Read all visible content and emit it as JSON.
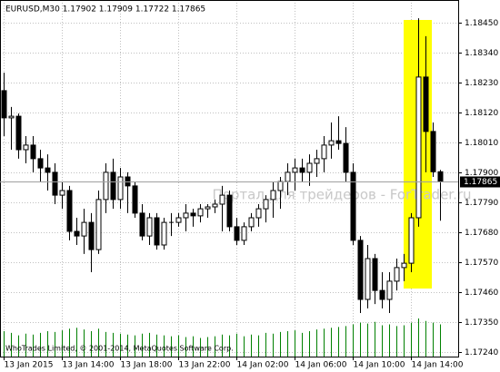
{
  "chart_data": {
    "type": "candlestick",
    "title": "EURUSD,M30  1.17902 1.17909 1.17722 1.17865",
    "watermark": "Портал для трейдеров - ForTrader.ru",
    "copyright": "WhoTrades Limited, © 2001-2014, MetaQuotes Software Corp.",
    "categories": [
      "13 Jan 2015",
      null,
      null,
      null,
      null,
      null,
      null,
      null,
      "13 Jan 14:00",
      null,
      null,
      null,
      null,
      null,
      null,
      null,
      "13 Jan 18:00",
      null,
      null,
      null,
      null,
      null,
      null,
      null,
      "13 Jan 22:00",
      null,
      null,
      null,
      null,
      null,
      null,
      null,
      "14 Jan 02:00",
      null,
      null,
      null,
      null,
      null,
      null,
      null,
      "14 Jan 06:00",
      null,
      null,
      null,
      null,
      null,
      null,
      null,
      "14 Jan 10:00",
      null,
      null,
      null,
      null,
      null,
      null,
      null,
      "14 Jan 14:00",
      null,
      null,
      null,
      null
    ],
    "open": [
      1.182,
      1.181,
      1.18106,
      1.17983,
      1.18,
      1.1795,
      1.17916,
      1.179,
      1.17816,
      1.17833,
      1.17683,
      1.17666,
      1.17716,
      1.17616,
      1.178,
      1.179,
      1.178,
      1.17883,
      1.1785,
      1.1775,
      1.17666,
      1.17733,
      1.17633,
      1.17716,
      1.17716,
      1.17733,
      1.1775,
      1.1774,
      1.17766,
      1.17773,
      1.17783,
      1.17816,
      1.177,
      1.1765,
      1.177,
      1.17733,
      1.17766,
      1.178,
      1.17833,
      1.17866,
      1.179,
      1.17916,
      1.179,
      1.17933,
      1.1795,
      1.18,
      1.18016,
      1.18006,
      1.179,
      1.1765,
      1.17433,
      1.17583,
      1.17466,
      1.17433,
      1.175,
      1.1755,
      1.17566,
      1.17733,
      1.1825,
      1.1805,
      1.17902
    ],
    "high": [
      1.18266,
      1.1814,
      1.18116,
      1.18033,
      1.18033,
      1.17983,
      1.17966,
      1.17933,
      1.17866,
      1.1785,
      1.17733,
      1.17766,
      1.1775,
      1.17833,
      1.17933,
      1.1795,
      1.17916,
      1.179,
      1.17866,
      1.17783,
      1.1775,
      1.1775,
      1.17733,
      1.1775,
      1.1775,
      1.17783,
      1.17766,
      1.17783,
      1.17783,
      1.178,
      1.1785,
      1.17833,
      1.17733,
      1.17716,
      1.1775,
      1.17783,
      1.17816,
      1.17866,
      1.17883,
      1.17933,
      1.1795,
      1.1795,
      1.17966,
      1.17983,
      1.18033,
      1.18083,
      1.18106,
      1.18066,
      1.17933,
      1.17666,
      1.17633,
      1.176,
      1.17533,
      1.17533,
      1.17583,
      1.176,
      1.1775,
      1.18466,
      1.184,
      1.18083,
      1.17909
    ],
    "low": [
      1.18033,
      1.17983,
      1.1795,
      1.17933,
      1.179,
      1.17866,
      1.17833,
      1.17783,
      1.17766,
      1.1765,
      1.17633,
      1.176,
      1.17533,
      1.176,
      1.1775,
      1.17766,
      1.17766,
      1.1775,
      1.17733,
      1.1765,
      1.17633,
      1.17616,
      1.17616,
      1.17666,
      1.177,
      1.17683,
      1.177,
      1.17716,
      1.17733,
      1.1775,
      1.17683,
      1.17683,
      1.17633,
      1.17633,
      1.17683,
      1.177,
      1.17716,
      1.17733,
      1.17766,
      1.17816,
      1.17833,
      1.17866,
      1.1785,
      1.17883,
      1.179,
      1.1795,
      1.17983,
      1.17866,
      1.17633,
      1.17383,
      1.174,
      1.17416,
      1.174,
      1.17383,
      1.17466,
      1.175,
      1.17533,
      1.177,
      1.179,
      1.17883,
      1.17722
    ],
    "close": [
      1.181,
      1.18106,
      1.17983,
      1.18,
      1.1795,
      1.17916,
      1.179,
      1.17816,
      1.17833,
      1.17683,
      1.17666,
      1.17716,
      1.17616,
      1.178,
      1.179,
      1.178,
      1.17883,
      1.1785,
      1.1775,
      1.17666,
      1.17733,
      1.17633,
      1.17716,
      1.17716,
      1.17733,
      1.1775,
      1.1774,
      1.17766,
      1.17773,
      1.17783,
      1.17816,
      1.177,
      1.1765,
      1.177,
      1.17733,
      1.17766,
      1.178,
      1.17833,
      1.17866,
      1.179,
      1.17916,
      1.179,
      1.17933,
      1.1795,
      1.18,
      1.18016,
      1.18006,
      1.179,
      1.1765,
      1.17433,
      1.17583,
      1.17466,
      1.17433,
      1.175,
      1.1755,
      1.17566,
      1.17733,
      1.1825,
      1.1805,
      1.17902,
      1.17865
    ],
    "volume": [
      30,
      28,
      25,
      27,
      26,
      28,
      30,
      29,
      31,
      33,
      34,
      32,
      30,
      33,
      29,
      28,
      27,
      26,
      25,
      27,
      28,
      26,
      25,
      24,
      25,
      23,
      24,
      22,
      23,
      24,
      26,
      25,
      27,
      24,
      26,
      25,
      28,
      27,
      29,
      30,
      31,
      28,
      30,
      32,
      33,
      34,
      35,
      36,
      38,
      40,
      39,
      41,
      37,
      38,
      36,
      37,
      40,
      45,
      42,
      40,
      38
    ],
    "up_color": "#ffffff",
    "down_color": "#000000",
    "volume_color": "#008000",
    "ylim": [
      1.17223,
      1.18533
    ],
    "yticks": [
      {
        "value": 1.1845,
        "label": "1.18450"
      },
      {
        "value": 1.1834,
        "label": "1.18340"
      },
      {
        "value": 1.1823,
        "label": "1.18230"
      },
      {
        "value": 1.1812,
        "label": "1.18120"
      },
      {
        "value": 1.1801,
        "label": "1.18010"
      },
      {
        "value": 1.179,
        "label": "1.17900"
      },
      {
        "value": 1.1779,
        "label": "1.17790"
      },
      {
        "value": 1.1768,
        "label": "1.17680"
      },
      {
        "value": 1.1757,
        "label": "1.17570"
      },
      {
        "value": 1.1746,
        "label": "1.17460"
      },
      {
        "value": 1.1735,
        "label": "1.17350"
      },
      {
        "value": 1.1724,
        "label": "1.17240"
      }
    ],
    "grid": true
  }
}
